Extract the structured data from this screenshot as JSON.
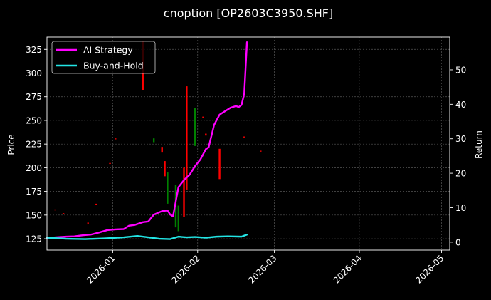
{
  "chart_data": {
    "type": "line",
    "title": "cnoption [OP2603C3950.SHF]",
    "xlabel": "",
    "ylabel": "Price",
    "y2label": "Return",
    "grid": true,
    "legend_position": "top-left",
    "x_range": [
      "2025-12-08",
      "2026-05-04"
    ],
    "x_ticks": [
      "2026-01",
      "2026-02",
      "2026-03",
      "2026-04",
      "2026-05"
    ],
    "ylim": [
      113,
      338
    ],
    "y_ticks": [
      125,
      150,
      175,
      200,
      225,
      250,
      275,
      300,
      325
    ],
    "y2lim": [
      -2.3,
      59.5
    ],
    "y2_ticks": [
      0,
      10,
      20,
      30,
      40,
      50
    ],
    "series": [
      {
        "name": "AI Strategy",
        "color": "#ff00ff",
        "axis": "right",
        "points": [
          [
            "2025-12-08",
            1.2
          ],
          [
            "2025-12-11",
            1.4
          ],
          [
            "2025-12-15",
            1.6
          ],
          [
            "2025-12-18",
            1.7
          ],
          [
            "2025-12-21",
            2.0
          ],
          [
            "2025-12-24",
            2.2
          ],
          [
            "2025-12-27",
            2.8
          ],
          [
            "2025-12-30",
            3.5
          ],
          [
            "2026-01-02",
            3.7
          ],
          [
            "2026-01-05",
            3.8
          ],
          [
            "2026-01-07",
            4.8
          ],
          [
            "2026-01-09",
            5.0
          ],
          [
            "2026-01-12",
            5.8
          ],
          [
            "2026-01-14",
            6.0
          ],
          [
            "2026-01-16",
            8.0
          ],
          [
            "2026-01-19",
            9.0
          ],
          [
            "2026-01-21",
            9.2
          ],
          [
            "2026-01-22",
            8.0
          ],
          [
            "2026-01-23",
            7.5
          ],
          [
            "2026-01-25",
            16.0
          ],
          [
            "2026-01-27",
            18.0
          ],
          [
            "2026-01-29",
            19.5
          ],
          [
            "2026-01-31",
            22.0
          ],
          [
            "2026-02-02",
            24.0
          ],
          [
            "2026-02-04",
            27.0
          ],
          [
            "2026-02-05",
            27.5
          ],
          [
            "2026-02-07",
            34.0
          ],
          [
            "2026-02-09",
            37.0
          ],
          [
            "2026-02-11",
            38.0
          ],
          [
            "2026-02-13",
            39.0
          ],
          [
            "2026-02-15",
            39.5
          ],
          [
            "2026-02-16",
            39.2
          ],
          [
            "2026-02-17",
            39.8
          ],
          [
            "2026-02-18",
            43.0
          ],
          [
            "2026-02-19",
            58.0
          ]
        ]
      },
      {
        "name": "Buy-and-Hold",
        "color": "#22e5e5",
        "axis": "right",
        "points": [
          [
            "2025-12-08",
            1.3
          ],
          [
            "2025-12-15",
            1.0
          ],
          [
            "2025-12-22",
            0.9
          ],
          [
            "2025-12-29",
            1.1
          ],
          [
            "2026-01-05",
            1.4
          ],
          [
            "2026-01-10",
            1.8
          ],
          [
            "2026-01-14",
            1.4
          ],
          [
            "2026-01-18",
            1.0
          ],
          [
            "2026-01-22",
            0.9
          ],
          [
            "2026-01-25",
            1.6
          ],
          [
            "2026-01-28",
            1.4
          ],
          [
            "2026-01-31",
            1.5
          ],
          [
            "2026-02-04",
            1.3
          ],
          [
            "2026-02-08",
            1.6
          ],
          [
            "2026-02-12",
            1.7
          ],
          [
            "2026-02-17",
            1.6
          ],
          [
            "2026-02-19",
            2.2
          ]
        ]
      }
    ],
    "candles": [
      {
        "date": "2025-12-11",
        "open": 156,
        "close": 155,
        "color": "#ff0000"
      },
      {
        "date": "2025-12-14",
        "open": 152,
        "close": 151,
        "color": "#ff0000"
      },
      {
        "date": "2025-12-23",
        "open": 142,
        "close": 141,
        "color": "#ff0000"
      },
      {
        "date": "2025-12-26",
        "open": 162,
        "close": 161,
        "color": "#ff0000"
      },
      {
        "date": "2025-12-31",
        "open": 205,
        "close": 204,
        "color": "#ff0000"
      },
      {
        "date": "2026-01-02",
        "open": 231,
        "close": 230,
        "color": "#ff0000"
      },
      {
        "date": "2026-01-12",
        "open": 334,
        "close": 282,
        "color": "#ff0000"
      },
      {
        "date": "2026-01-16",
        "open": 231,
        "close": 227,
        "color": "#008000"
      },
      {
        "date": "2026-01-19",
        "open": 222,
        "close": 216,
        "color": "#ff0000"
      },
      {
        "date": "2026-01-20",
        "open": 207,
        "close": 191,
        "color": "#ff0000"
      },
      {
        "date": "2026-01-21",
        "open": 195,
        "close": 162,
        "color": "#008000"
      },
      {
        "date": "2026-01-24",
        "open": 182,
        "close": 137,
        "color": "#008000"
      },
      {
        "date": "2026-01-25",
        "open": 160,
        "close": 133,
        "color": "#008000"
      },
      {
        "date": "2026-01-27",
        "open": 200,
        "close": 148,
        "color": "#ff0000"
      },
      {
        "date": "2026-01-28",
        "open": 286,
        "close": 177,
        "color": "#ff0000"
      },
      {
        "date": "2026-01-31",
        "open": 263,
        "close": 223,
        "color": "#008000"
      },
      {
        "date": "2026-02-03",
        "open": 254,
        "close": 253,
        "color": "#ff0000"
      },
      {
        "date": "2026-02-04",
        "open": 236,
        "close": 234,
        "color": "#ff0000"
      },
      {
        "date": "2026-02-09",
        "open": 220,
        "close": 188,
        "color": "#ff0000"
      },
      {
        "date": "2026-02-18",
        "open": 233,
        "close": 232,
        "color": "#ff0000"
      },
      {
        "date": "2026-02-24",
        "open": 218,
        "close": 217,
        "color": "#ff0000"
      }
    ]
  }
}
